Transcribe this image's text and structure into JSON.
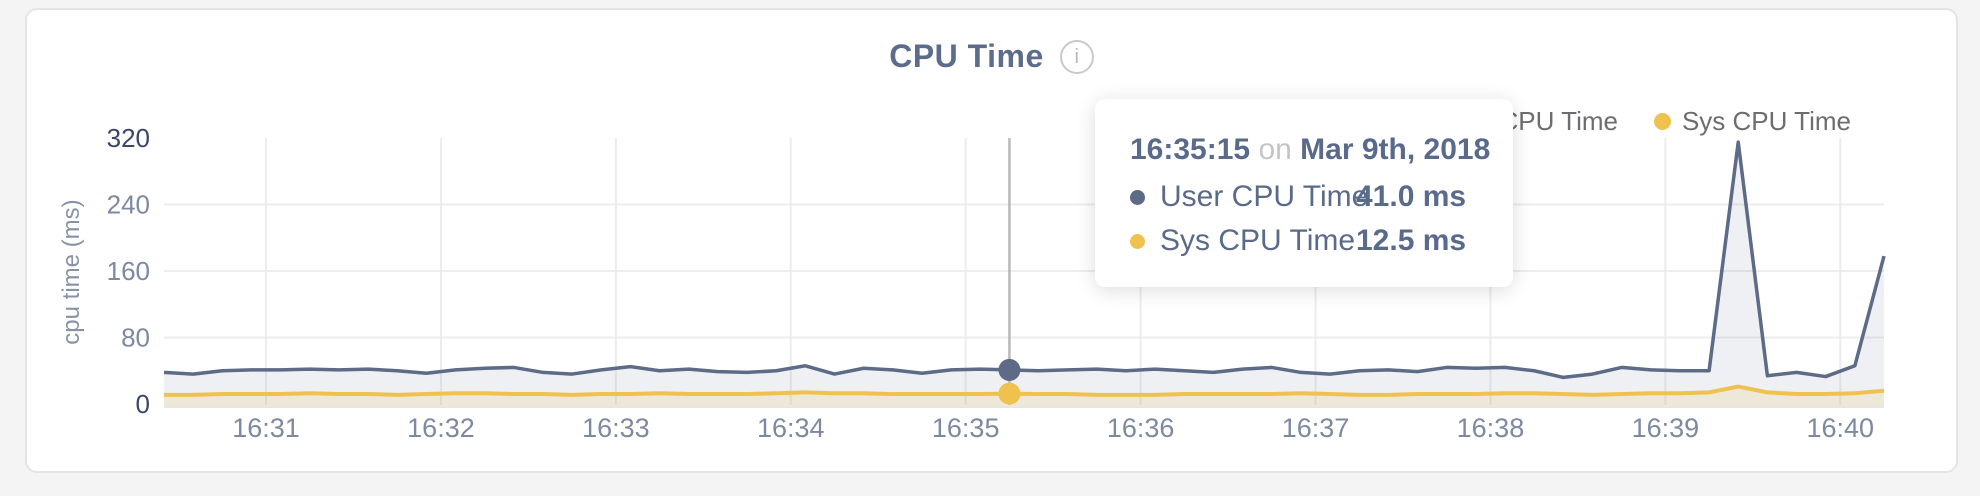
{
  "card": {
    "title": "CPU Time",
    "info_icon": "i"
  },
  "legend": {
    "items": [
      {
        "label": "User CPU Time",
        "color": "#5d6b87"
      },
      {
        "label": "Sys CPU Time",
        "color": "#efc24f"
      }
    ]
  },
  "tooltip": {
    "time": "16:35:15",
    "preposition": "on",
    "date": "Mar 9th, 2018",
    "rows": [
      {
        "label": "User CPU Time",
        "value": "41.0 ms"
      },
      {
        "label": "Sys CPU Time",
        "value": "12.5 ms"
      }
    ]
  },
  "chart_data": {
    "type": "area",
    "title": "CPU Time",
    "xlabel": "",
    "ylabel": "cpu time (ms)",
    "ylim": [
      0,
      320
    ],
    "y_ticks": [
      0,
      80,
      160,
      240,
      320
    ],
    "x_ticks": [
      "16:31",
      "16:32",
      "16:33",
      "16:34",
      "16:35",
      "16:36",
      "16:37",
      "16:38",
      "16:39",
      "16:40"
    ],
    "x_domain": [
      "16:30:25",
      "16:40:15"
    ],
    "grid": true,
    "legend_position": "top-right",
    "x": [
      "16:30:25",
      "16:30:35",
      "16:30:45",
      "16:30:55",
      "16:31:05",
      "16:31:15",
      "16:31:25",
      "16:31:35",
      "16:31:45",
      "16:31:55",
      "16:32:05",
      "16:32:15",
      "16:32:25",
      "16:32:35",
      "16:32:45",
      "16:32:55",
      "16:33:05",
      "16:33:15",
      "16:33:25",
      "16:33:35",
      "16:33:45",
      "16:33:55",
      "16:34:05",
      "16:34:15",
      "16:34:25",
      "16:34:35",
      "16:34:45",
      "16:34:55",
      "16:35:05",
      "16:35:15",
      "16:35:25",
      "16:35:35",
      "16:35:45",
      "16:35:55",
      "16:36:05",
      "16:36:15",
      "16:36:25",
      "16:36:35",
      "16:36:45",
      "16:36:55",
      "16:37:05",
      "16:37:15",
      "16:37:25",
      "16:37:35",
      "16:37:45",
      "16:37:55",
      "16:38:05",
      "16:38:15",
      "16:38:25",
      "16:38:35",
      "16:38:45",
      "16:38:55",
      "16:39:05",
      "16:39:15",
      "16:39:25",
      "16:39:35",
      "16:39:45",
      "16:39:55",
      "16:40:05",
      "16:40:15"
    ],
    "series": [
      {
        "name": "User CPU Time",
        "color": "#5d6b87",
        "values": [
          38,
          36,
          40,
          41,
          41,
          42,
          41,
          42,
          40,
          37,
          41,
          43,
          44,
          38,
          36,
          41,
          45,
          40,
          42,
          39,
          38,
          40,
          46,
          36,
          43,
          41,
          37,
          41,
          42,
          41,
          40,
          41,
          42,
          40,
          42,
          40,
          38,
          42,
          44,
          38,
          36,
          40,
          41,
          39,
          44,
          43,
          44,
          40,
          32,
          36,
          44,
          41,
          40,
          40,
          315,
          34,
          38,
          33,
          46,
          178
        ]
      },
      {
        "name": "Sys CPU Time",
        "color": "#efc24f",
        "values": [
          11,
          11,
          12,
          12,
          12,
          13,
          12,
          12,
          11,
          12,
          13,
          13,
          12,
          12,
          11,
          12,
          12,
          13,
          12,
          12,
          12,
          13,
          14,
          13,
          13,
          12,
          12,
          12,
          12,
          12.5,
          12,
          12,
          11,
          11,
          11,
          12,
          12,
          12,
          12,
          13,
          12,
          11,
          11,
          12,
          12,
          12,
          13,
          13,
          12,
          11,
          12,
          13,
          13,
          14,
          21,
          14,
          12,
          12,
          13,
          16
        ]
      }
    ],
    "highlight": {
      "time": "16:35:15",
      "values": [
        41.0,
        12.5
      ]
    }
  }
}
